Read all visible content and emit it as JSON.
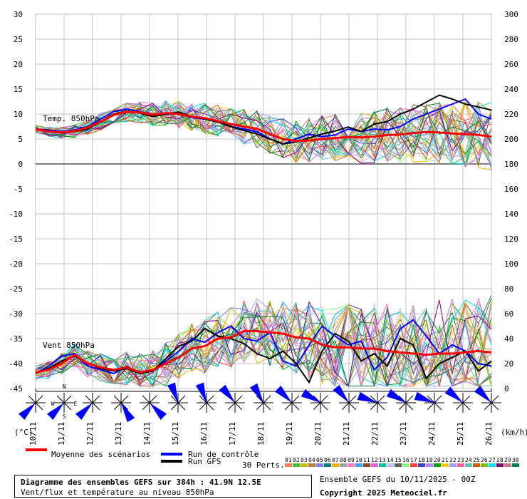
{
  "chart_data": {
    "type": "line",
    "title": "Diagramme des ensembles GEFS sur 384h : 41.9N 12.5E",
    "subtitle": "Vent/flux et température au niveau 850hPa",
    "left_axis": {
      "unit": "(°C)",
      "ticks": [
        30,
        25,
        20,
        15,
        10,
        5,
        0,
        -5,
        -10,
        -15,
        -20,
        -25,
        -30,
        -35,
        -40,
        -45
      ]
    },
    "right_axis": {
      "unit": "(km/h)",
      "ticks": [
        300,
        280,
        260,
        240,
        220,
        200,
        180,
        160,
        140,
        120,
        100,
        80,
        60,
        40,
        20,
        0
      ]
    },
    "x_labels": [
      "10/11",
      "11/11",
      "12/11",
      "13/11",
      "14/11",
      "15/11",
      "16/11",
      "17/11",
      "18/11",
      "19/11",
      "20/11",
      "21/11",
      "22/11",
      "23/11",
      "24/11",
      "25/11",
      "26/11"
    ],
    "temp_panel": {
      "label": "Temp. 850hPa",
      "mean": [
        7,
        6.5,
        6.3,
        6.6,
        7.3,
        8.5,
        9.8,
        10.5,
        10.3,
        9.9,
        10.2,
        10,
        9.5,
        9.2,
        8.6,
        8,
        7.5,
        7,
        6,
        5,
        4.6,
        4.7,
        5,
        5.2,
        5.4,
        5.3,
        5.5,
        5.8,
        5.9,
        6.2,
        6.4,
        6.3,
        6.1,
        6,
        5.8,
        5.5
      ],
      "control": [
        7,
        6.8,
        6.5,
        6.8,
        7.5,
        9,
        10.5,
        11,
        10.5,
        9.8,
        10,
        10,
        9.3,
        9,
        8.5,
        7.5,
        7,
        6.5,
        5,
        4,
        5,
        6,
        5.5,
        5.8,
        7,
        6.5,
        7,
        6.8,
        7.5,
        9,
        10,
        11,
        12,
        13,
        10,
        9
      ],
      "gfs": [
        7,
        6.5,
        6.2,
        6.5,
        7,
        8.5,
        10,
        10.6,
        10.2,
        9.5,
        10,
        10.4,
        9.5,
        9,
        8.4,
        7.5,
        6.7,
        6,
        5,
        4,
        4.4,
        5.2,
        6,
        6.6,
        7.4,
        6.5,
        8,
        8.5,
        10,
        11,
        12.4,
        13.8,
        13,
        12,
        11.4,
        10.8
      ]
    },
    "wind_panel": {
      "label": "Vent 850hPa",
      "mean_kmh": [
        13,
        15,
        20,
        27,
        20,
        17,
        15,
        17,
        13,
        15,
        20,
        25,
        32,
        34,
        40,
        41,
        46,
        46,
        45,
        44,
        41,
        40,
        35,
        33,
        33,
        32,
        32,
        30,
        29,
        28,
        27,
        28,
        28,
        29,
        30,
        29
      ],
      "control_kmh": [
        12,
        18,
        26,
        28,
        18,
        15,
        12,
        18,
        12,
        15,
        22,
        30,
        40,
        37,
        45,
        50,
        40,
        38,
        45,
        22,
        18,
        35,
        50,
        42,
        35,
        38,
        15,
        25,
        48,
        55,
        42,
        28,
        35,
        30,
        20,
        18
      ],
      "gfs_kmh": [
        12,
        16,
        22,
        26,
        20,
        16,
        14,
        16,
        12,
        14,
        24,
        34,
        38,
        48,
        42,
        40,
        36,
        28,
        24,
        30,
        20,
        5,
        30,
        44,
        38,
        22,
        28,
        18,
        40,
        35,
        8,
        20,
        25,
        30,
        14,
        22
      ]
    },
    "wind_barbs": {
      "count": 17,
      "compass": [
        "N",
        "W",
        "E",
        "S"
      ],
      "directions_deg": [
        135,
        135,
        135,
        60,
        45,
        250,
        250,
        230,
        240,
        225,
        210,
        230,
        200,
        210,
        200,
        220,
        225
      ]
    },
    "legend": [
      {
        "label": "Moyenne des scénarios",
        "color": "#ff0000"
      },
      {
        "label": "Run de contrôle",
        "color": "#0000ff"
      },
      {
        "label": "Run GFS",
        "color": "#000000"
      }
    ],
    "perturbations_label": "30 Perts.",
    "perturbation_numbers": [
      "01",
      "02",
      "03",
      "04",
      "05",
      "06",
      "07",
      "08",
      "09",
      "10",
      "11",
      "12",
      "13",
      "14",
      "15",
      "16",
      "17",
      "18",
      "19",
      "20",
      "21",
      "22",
      "23",
      "24",
      "25",
      "26",
      "27",
      "28",
      "29",
      "30"
    ],
    "perturbation_colors": [
      "#ff8040",
      "#40c040",
      "#c0c000",
      "#c08040",
      "#8080ff",
      "#008080",
      "#ffb000",
      "#a0a0a0",
      "#ff80c0",
      "#40a0ff",
      "#805020",
      "#e060e0",
      "#00c0a0",
      "#c0c0ff",
      "#606060",
      "#80ff80",
      "#ff4040",
      "#4040c0",
      "#c080ff",
      "#00a000",
      "#ffd000",
      "#a0a0ff",
      "#ff60a0",
      "#60c0c0",
      "#c06000",
      "#80c000",
      "#00e0ff",
      "#800080",
      "#c08080",
      "#008040"
    ]
  },
  "footer": {
    "ensemble": "Ensemble GEFS du 10/11/2025 - 00Z",
    "copyright": "Copyright 2025 Meteociel.fr"
  }
}
